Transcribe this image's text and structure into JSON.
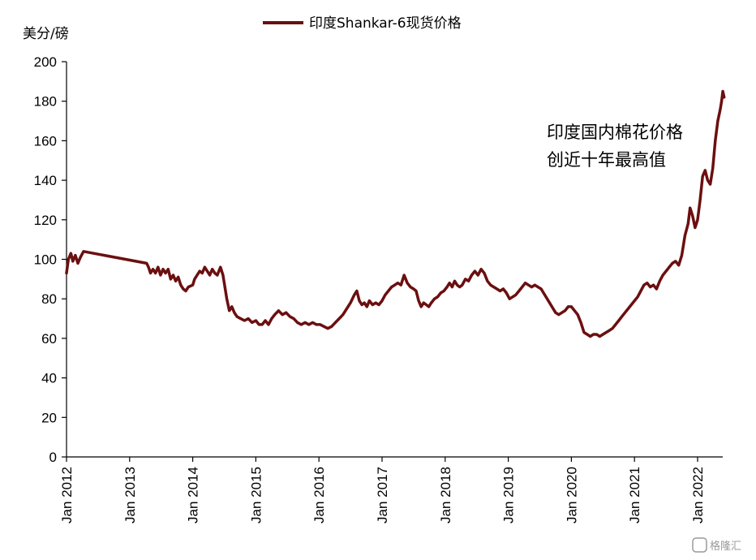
{
  "chart_data": {
    "type": "line",
    "ylabel": "美分/磅",
    "ylim": [
      0,
      200
    ],
    "y_ticks": [
      "0",
      "20",
      "40",
      "60",
      "80",
      "100",
      "120",
      "140",
      "160",
      "180",
      "200"
    ],
    "x_ticks": [
      "Jan 2012",
      "Jan 2013",
      "Jan 2014",
      "Jan 2015",
      "Jan 2016",
      "Jan 2017",
      "Jan 2018",
      "Jan 2019",
      "Jan 2020",
      "Jan 2021",
      "Jan 2022"
    ],
    "grid": false,
    "legend_position": "top-center",
    "annotation": [
      "印度国内棉花价格",
      "创近十年最高值"
    ],
    "series": [
      {
        "name": "印度Shankar-6现货价格",
        "color": "#6b0f10",
        "points": [
          [
            2012.0,
            93
          ],
          [
            2012.03,
            100
          ],
          [
            2012.07,
            103
          ],
          [
            2012.1,
            99
          ],
          [
            2012.14,
            102
          ],
          [
            2012.18,
            98
          ],
          [
            2012.22,
            101
          ],
          [
            2012.27,
            104
          ],
          [
            2013.27,
            98
          ],
          [
            2013.3,
            96
          ],
          [
            2013.33,
            93
          ],
          [
            2013.37,
            95
          ],
          [
            2013.41,
            93
          ],
          [
            2013.45,
            96
          ],
          [
            2013.49,
            92
          ],
          [
            2013.53,
            95
          ],
          [
            2013.57,
            93
          ],
          [
            2013.61,
            95
          ],
          [
            2013.65,
            90
          ],
          [
            2013.69,
            92
          ],
          [
            2013.73,
            89
          ],
          [
            2013.77,
            91
          ],
          [
            2013.81,
            87
          ],
          [
            2013.85,
            85
          ],
          [
            2013.89,
            84
          ],
          [
            2013.93,
            86
          ],
          [
            2014.0,
            87
          ],
          [
            2014.03,
            90
          ],
          [
            2014.07,
            92
          ],
          [
            2014.11,
            94
          ],
          [
            2014.15,
            93
          ],
          [
            2014.19,
            96
          ],
          [
            2014.23,
            94
          ],
          [
            2014.27,
            92
          ],
          [
            2014.31,
            95
          ],
          [
            2014.35,
            93
          ],
          [
            2014.39,
            92
          ],
          [
            2014.44,
            96
          ],
          [
            2014.48,
            92
          ],
          [
            2014.54,
            80
          ],
          [
            2014.58,
            74
          ],
          [
            2014.62,
            76
          ],
          [
            2014.66,
            73
          ],
          [
            2014.7,
            71
          ],
          [
            2014.76,
            70
          ],
          [
            2014.82,
            69
          ],
          [
            2014.88,
            70
          ],
          [
            2014.94,
            68
          ],
          [
            2015.0,
            69
          ],
          [
            2015.05,
            67
          ],
          [
            2015.1,
            67
          ],
          [
            2015.15,
            69
          ],
          [
            2015.2,
            67
          ],
          [
            2015.25,
            70
          ],
          [
            2015.3,
            72
          ],
          [
            2015.36,
            74
          ],
          [
            2015.42,
            72
          ],
          [
            2015.48,
            73
          ],
          [
            2015.54,
            71
          ],
          [
            2015.6,
            70
          ],
          [
            2015.66,
            68
          ],
          [
            2015.72,
            67
          ],
          [
            2015.78,
            68
          ],
          [
            2015.84,
            67
          ],
          [
            2015.9,
            68
          ],
          [
            2015.96,
            67
          ],
          [
            2016.02,
            67
          ],
          [
            2016.08,
            66
          ],
          [
            2016.14,
            65
          ],
          [
            2016.2,
            66
          ],
          [
            2016.26,
            68
          ],
          [
            2016.32,
            70
          ],
          [
            2016.38,
            72
          ],
          [
            2016.44,
            75
          ],
          [
            2016.5,
            78
          ],
          [
            2016.56,
            82
          ],
          [
            2016.6,
            84
          ],
          [
            2016.64,
            79
          ],
          [
            2016.68,
            77
          ],
          [
            2016.72,
            78
          ],
          [
            2016.76,
            76
          ],
          [
            2016.8,
            79
          ],
          [
            2016.85,
            77
          ],
          [
            2016.9,
            78
          ],
          [
            2016.95,
            77
          ],
          [
            2017.0,
            79
          ],
          [
            2017.05,
            82
          ],
          [
            2017.1,
            84
          ],
          [
            2017.15,
            86
          ],
          [
            2017.2,
            87
          ],
          [
            2017.25,
            88
          ],
          [
            2017.3,
            87
          ],
          [
            2017.35,
            92
          ],
          [
            2017.4,
            88
          ],
          [
            2017.45,
            86
          ],
          [
            2017.5,
            85
          ],
          [
            2017.54,
            84
          ],
          [
            2017.58,
            79
          ],
          [
            2017.62,
            76
          ],
          [
            2017.66,
            78
          ],
          [
            2017.7,
            77
          ],
          [
            2017.74,
            76
          ],
          [
            2017.78,
            78
          ],
          [
            2017.83,
            80
          ],
          [
            2017.88,
            81
          ],
          [
            2017.93,
            83
          ],
          [
            2017.98,
            84
          ],
          [
            2018.03,
            86
          ],
          [
            2018.07,
            88
          ],
          [
            2018.11,
            86
          ],
          [
            2018.15,
            89
          ],
          [
            2018.19,
            87
          ],
          [
            2018.23,
            86
          ],
          [
            2018.27,
            87
          ],
          [
            2018.32,
            90
          ],
          [
            2018.37,
            89
          ],
          [
            2018.42,
            92
          ],
          [
            2018.47,
            94
          ],
          [
            2018.52,
            92
          ],
          [
            2018.57,
            95
          ],
          [
            2018.62,
            93
          ],
          [
            2018.67,
            89
          ],
          [
            2018.72,
            87
          ],
          [
            2018.77,
            86
          ],
          [
            2018.82,
            85
          ],
          [
            2018.87,
            84
          ],
          [
            2018.92,
            85
          ],
          [
            2018.97,
            83
          ],
          [
            2019.02,
            80
          ],
          [
            2019.07,
            81
          ],
          [
            2019.12,
            82
          ],
          [
            2019.17,
            84
          ],
          [
            2019.22,
            86
          ],
          [
            2019.27,
            88
          ],
          [
            2019.32,
            87
          ],
          [
            2019.37,
            86
          ],
          [
            2019.42,
            87
          ],
          [
            2019.47,
            86
          ],
          [
            2019.52,
            85
          ],
          [
            2019.75,
            73
          ],
          [
            2019.8,
            72
          ],
          [
            2019.85,
            73
          ],
          [
            2019.9,
            74
          ],
          [
            2019.95,
            76
          ],
          [
            2020.0,
            76
          ],
          [
            2020.05,
            74
          ],
          [
            2020.1,
            72
          ],
          [
            2020.15,
            68
          ],
          [
            2020.2,
            63
          ],
          [
            2020.25,
            62
          ],
          [
            2020.3,
            61
          ],
          [
            2020.35,
            62
          ],
          [
            2020.4,
            62
          ],
          [
            2020.45,
            61
          ],
          [
            2020.5,
            62
          ],
          [
            2020.55,
            63
          ],
          [
            2020.6,
            64
          ],
          [
            2020.65,
            65
          ],
          [
            2020.7,
            67
          ],
          [
            2020.75,
            69
          ],
          [
            2020.8,
            71
          ],
          [
            2020.85,
            73
          ],
          [
            2020.9,
            75
          ],
          [
            2020.95,
            77
          ],
          [
            2021.0,
            79
          ],
          [
            2021.05,
            81
          ],
          [
            2021.1,
            84
          ],
          [
            2021.15,
            87
          ],
          [
            2021.2,
            88
          ],
          [
            2021.25,
            86
          ],
          [
            2021.3,
            87
          ],
          [
            2021.35,
            85
          ],
          [
            2021.4,
            89
          ],
          [
            2021.45,
            92
          ],
          [
            2021.5,
            94
          ],
          [
            2021.55,
            96
          ],
          [
            2021.6,
            98
          ],
          [
            2021.65,
            99
          ],
          [
            2021.7,
            97
          ],
          [
            2021.75,
            102
          ],
          [
            2021.8,
            112
          ],
          [
            2021.85,
            118
          ],
          [
            2021.88,
            126
          ],
          [
            2021.92,
            122
          ],
          [
            2021.96,
            116
          ],
          [
            2022.0,
            120
          ],
          [
            2022.04,
            130
          ],
          [
            2022.08,
            142
          ],
          [
            2022.12,
            145
          ],
          [
            2022.16,
            140
          ],
          [
            2022.2,
            138
          ],
          [
            2022.24,
            146
          ],
          [
            2022.28,
            160
          ],
          [
            2022.32,
            170
          ],
          [
            2022.36,
            176
          ],
          [
            2022.38,
            180
          ],
          [
            2022.4,
            185
          ],
          [
            2022.42,
            182
          ]
        ]
      }
    ]
  },
  "watermark": "格隆汇"
}
